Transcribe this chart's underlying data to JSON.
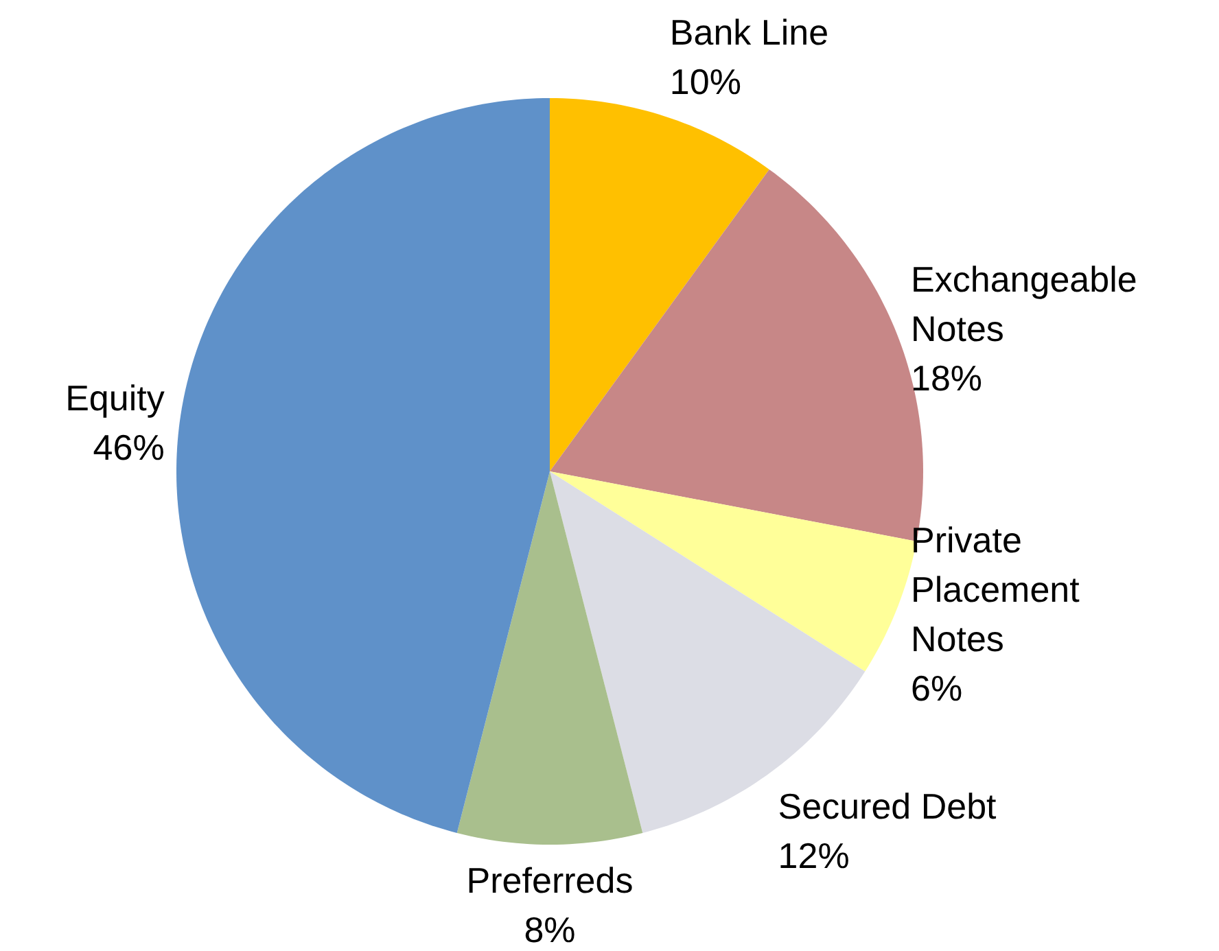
{
  "chart_data": {
    "type": "pie",
    "categories": [
      "Bank Line",
      "Exchangeable Notes",
      "Private Placement Notes",
      "Secured Debt",
      "Preferreds",
      "Equity"
    ],
    "values": [
      10,
      18,
      6,
      12,
      8,
      46
    ],
    "value_labels": [
      "10%",
      "18%",
      "6%",
      "12%",
      "8%",
      "46%"
    ],
    "colors": [
      "#ffc000",
      "#c78787",
      "#ffff99",
      "#dcdde5",
      "#a9bf8d",
      "#5f91c9"
    ]
  }
}
